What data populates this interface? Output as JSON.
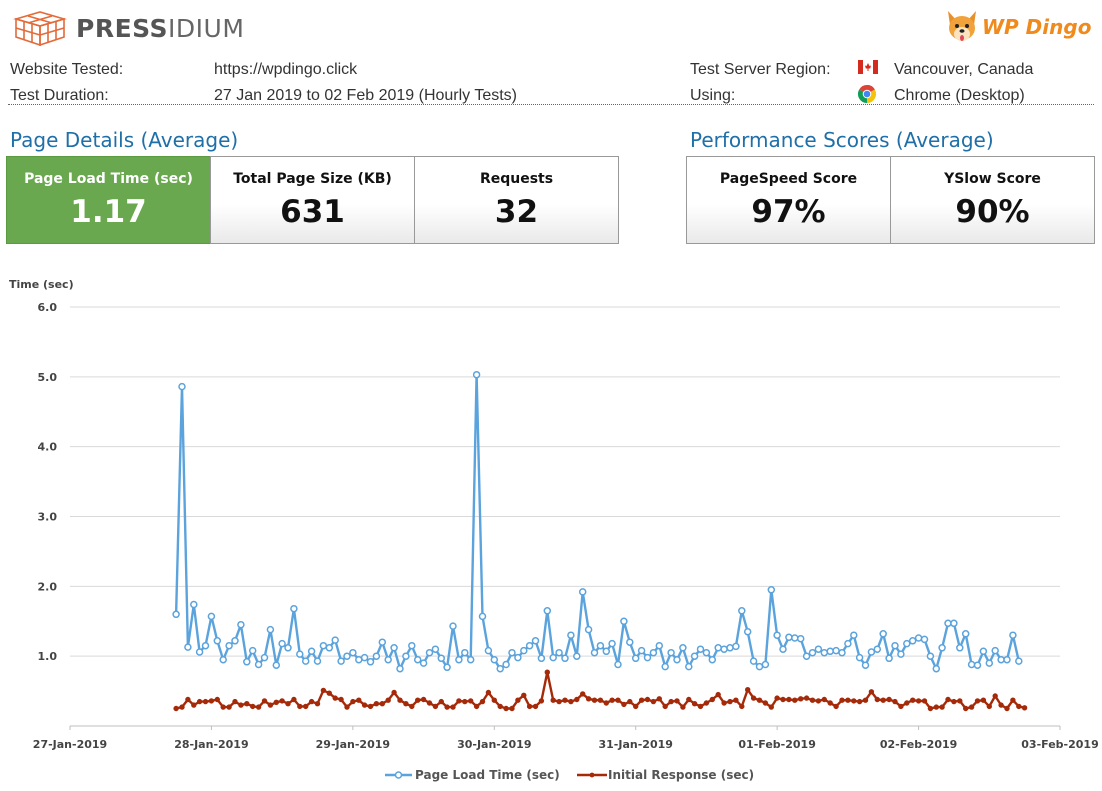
{
  "header": {
    "brand_left_bold": "PRESS",
    "brand_left_light": "IDIUM",
    "brand_right": "WP Dingo"
  },
  "info": {
    "website_label": "Website Tested:",
    "website_value": "https://wpdingo.click",
    "duration_label": "Test Duration:",
    "duration_value": "27 Jan 2019 to 02 Feb 2019 (Hourly Tests)",
    "region_label": "Test Server Region:",
    "region_value": "Vancouver, Canada",
    "using_label": "Using:",
    "using_value": "Chrome (Desktop)"
  },
  "page_details": {
    "title": "Page Details (Average)",
    "cards": [
      {
        "label": "Page Load Time (sec)",
        "value": "1.17"
      },
      {
        "label": "Total Page Size (KB)",
        "value": "631"
      },
      {
        "label": "Requests",
        "value": "32"
      }
    ]
  },
  "performance": {
    "title": "Performance Scores (Average)",
    "cards": [
      {
        "label": "PageSpeed Score",
        "value": "97%"
      },
      {
        "label": "YSlow Score",
        "value": "90%"
      }
    ]
  },
  "colors": {
    "page_load": "#5ba3dd",
    "initial_response": "#a52a0a",
    "green_card": "#6aa84f",
    "title_blue": "#1f6fa8"
  },
  "chart_data": {
    "type": "line",
    "ylabel": "Time (sec)",
    "ylim": [
      0,
      6
    ],
    "yticks": [
      "6.0",
      "5.0",
      "4.0",
      "3.0",
      "2.0",
      "1.0"
    ],
    "yticks_values": [
      6,
      5,
      4,
      3,
      2,
      1
    ],
    "xlim_days": [
      "27-Jan-2019",
      "03-Feb-2019"
    ],
    "xtick_labels": [
      "27-Jan-2019",
      "28-Jan-2019",
      "29-Jan-2019",
      "30-Jan-2019",
      "31-Jan-2019",
      "01-Feb-2019",
      "02-Feb-2019",
      "03-Feb-2019"
    ],
    "grid": "horizontal",
    "legend_position": "bottom",
    "x_start": "2019-01-27T18:00",
    "x_step_hours": 1,
    "series": [
      {
        "name": "Page Load Time (sec)",
        "color": "#5ba3dd",
        "values": [
          1.6,
          4.86,
          1.13,
          1.74,
          1.06,
          1.15,
          1.57,
          1.22,
          0.95,
          1.15,
          1.22,
          1.45,
          0.92,
          1.08,
          0.88,
          0.98,
          1.38,
          0.87,
          1.18,
          1.12,
          1.68,
          1.03,
          0.93,
          1.07,
          0.93,
          1.15,
          1.12,
          1.23,
          0.93,
          1.0,
          1.05,
          0.95,
          0.98,
          0.92,
          1.0,
          1.2,
          0.95,
          1.12,
          0.82,
          1.0,
          1.15,
          0.95,
          0.9,
          1.05,
          1.1,
          0.97,
          0.84,
          1.43,
          0.95,
          1.05,
          0.95,
          5.03,
          1.57,
          1.08,
          0.95,
          0.82,
          0.88,
          1.05,
          0.98,
          1.08,
          1.15,
          1.22,
          0.97,
          1.65,
          0.98,
          1.05,
          0.97,
          1.3,
          1.0,
          1.92,
          1.38,
          1.05,
          1.15,
          1.07,
          1.18,
          0.88,
          1.5,
          1.2,
          0.97,
          1.08,
          0.98,
          1.05,
          1.15,
          0.85,
          1.05,
          0.95,
          1.12,
          0.85,
          1.0,
          1.1,
          1.05,
          0.95,
          1.12,
          1.1,
          1.12,
          1.14,
          1.65,
          1.35,
          0.93,
          0.85,
          0.88,
          1.95,
          1.3,
          1.1,
          1.27,
          1.26,
          1.25,
          1.0,
          1.05,
          1.1,
          1.05,
          1.07,
          1.08,
          1.05,
          1.18,
          1.3,
          0.98,
          0.87,
          1.06,
          1.1,
          1.32,
          0.97,
          1.15,
          1.03,
          1.18,
          1.22,
          1.26,
          1.24,
          1.0,
          0.82,
          1.12,
          1.47,
          1.47,
          1.12,
          1.32,
          0.88,
          0.87,
          1.07,
          0.9,
          1.08,
          0.95,
          0.95,
          1.3,
          0.93
        ]
      },
      {
        "name": "Initial Response (sec)",
        "color": "#a52a0a",
        "values": [
          0.25,
          0.27,
          0.38,
          0.3,
          0.35,
          0.35,
          0.36,
          0.38,
          0.27,
          0.27,
          0.35,
          0.3,
          0.32,
          0.28,
          0.27,
          0.36,
          0.3,
          0.34,
          0.36,
          0.32,
          0.38,
          0.28,
          0.28,
          0.35,
          0.32,
          0.51,
          0.47,
          0.4,
          0.38,
          0.27,
          0.35,
          0.37,
          0.3,
          0.28,
          0.32,
          0.32,
          0.37,
          0.48,
          0.37,
          0.32,
          0.28,
          0.37,
          0.38,
          0.33,
          0.28,
          0.35,
          0.27,
          0.27,
          0.36,
          0.35,
          0.36,
          0.28,
          0.35,
          0.48,
          0.37,
          0.28,
          0.25,
          0.25,
          0.37,
          0.44,
          0.28,
          0.28,
          0.36,
          0.77,
          0.37,
          0.35,
          0.37,
          0.35,
          0.38,
          0.46,
          0.39,
          0.37,
          0.37,
          0.33,
          0.37,
          0.37,
          0.31,
          0.35,
          0.28,
          0.37,
          0.38,
          0.35,
          0.39,
          0.28,
          0.35,
          0.36,
          0.27,
          0.38,
          0.32,
          0.28,
          0.33,
          0.38,
          0.45,
          0.33,
          0.35,
          0.37,
          0.28,
          0.52,
          0.4,
          0.37,
          0.33,
          0.27,
          0.4,
          0.38,
          0.38,
          0.37,
          0.39,
          0.4,
          0.37,
          0.36,
          0.38,
          0.33,
          0.28,
          0.37,
          0.37,
          0.36,
          0.35,
          0.37,
          0.49,
          0.38,
          0.37,
          0.38,
          0.35,
          0.28,
          0.33,
          0.37,
          0.36,
          0.36,
          0.25,
          0.27,
          0.27,
          0.38,
          0.35,
          0.36,
          0.25,
          0.27,
          0.36,
          0.37,
          0.28,
          0.43,
          0.3,
          0.25,
          0.37,
          0.28,
          0.26
        ]
      }
    ]
  }
}
